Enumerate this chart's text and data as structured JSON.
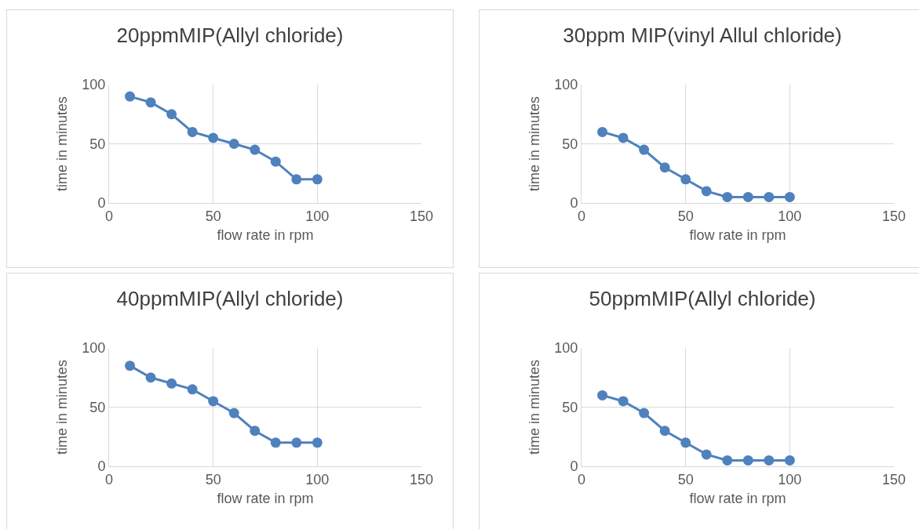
{
  "chart_data": [
    {
      "type": "line",
      "title": "20ppmMIP(Allyl chloride)",
      "xlabel": "flow rate in rpm",
      "ylabel": "time in minutes",
      "x": [
        10,
        20,
        30,
        40,
        50,
        60,
        70,
        80,
        90,
        100
      ],
      "series": [
        {
          "color": "#4f81bd",
          "values": [
            90,
            85,
            75,
            60,
            55,
            50,
            45,
            35,
            20,
            20
          ]
        }
      ],
      "xlim": [
        0,
        150
      ],
      "xticks": [
        0,
        50,
        100,
        150
      ],
      "ylim": [
        0,
        100
      ],
      "yticks": [
        0,
        50,
        100
      ],
      "grid": true,
      "marker": "circle",
      "line_style": "solid"
    },
    {
      "type": "line",
      "title": "30ppm MIP(vinyl Allul chloride)",
      "xlabel": "flow rate in rpm",
      "ylabel": "time in minutes",
      "x": [
        10,
        20,
        30,
        40,
        50,
        60,
        70,
        80,
        90,
        100
      ],
      "series": [
        {
          "color": "#4f81bd",
          "values": [
            60,
            55,
            45,
            30,
            20,
            10,
            5,
            5,
            5,
            5
          ]
        }
      ],
      "xlim": [
        0,
        150
      ],
      "xticks": [
        0,
        50,
        100,
        150
      ],
      "ylim": [
        0,
        100
      ],
      "yticks": [
        0,
        50,
        100
      ],
      "grid": true,
      "marker": "circle",
      "line_style": "solid"
    },
    {
      "type": "line",
      "title": "40ppmMIP(Allyl chloride)",
      "xlabel": "flow rate in rpm",
      "ylabel": "time in minutes",
      "x": [
        10,
        20,
        30,
        40,
        50,
        60,
        70,
        80,
        90,
        100
      ],
      "series": [
        {
          "color": "#4f81bd",
          "values": [
            85,
            75,
            70,
            65,
            55,
            45,
            30,
            20,
            20,
            20
          ]
        }
      ],
      "xlim": [
        0,
        150
      ],
      "xticks": [
        0,
        50,
        100,
        150
      ],
      "ylim": [
        0,
        100
      ],
      "yticks": [
        0,
        50,
        100
      ],
      "grid": true,
      "marker": "circle",
      "line_style": "solid"
    },
    {
      "type": "line",
      "title": "50ppmMIP(Allyl chloride)",
      "xlabel": "flow rate in rpm",
      "ylabel": "time in minutes",
      "x": [
        10,
        20,
        30,
        40,
        50,
        60,
        70,
        80,
        90,
        100
      ],
      "series": [
        {
          "color": "#4f81bd",
          "values": [
            60,
            55,
            45,
            30,
            20,
            10,
            5,
            5,
            5,
            5
          ]
        }
      ],
      "xlim": [
        0,
        150
      ],
      "xticks": [
        0,
        50,
        100,
        150
      ],
      "ylim": [
        0,
        100
      ],
      "yticks": [
        0,
        50,
        100
      ],
      "grid": true,
      "marker": "circle",
      "line_style": "solid"
    }
  ]
}
